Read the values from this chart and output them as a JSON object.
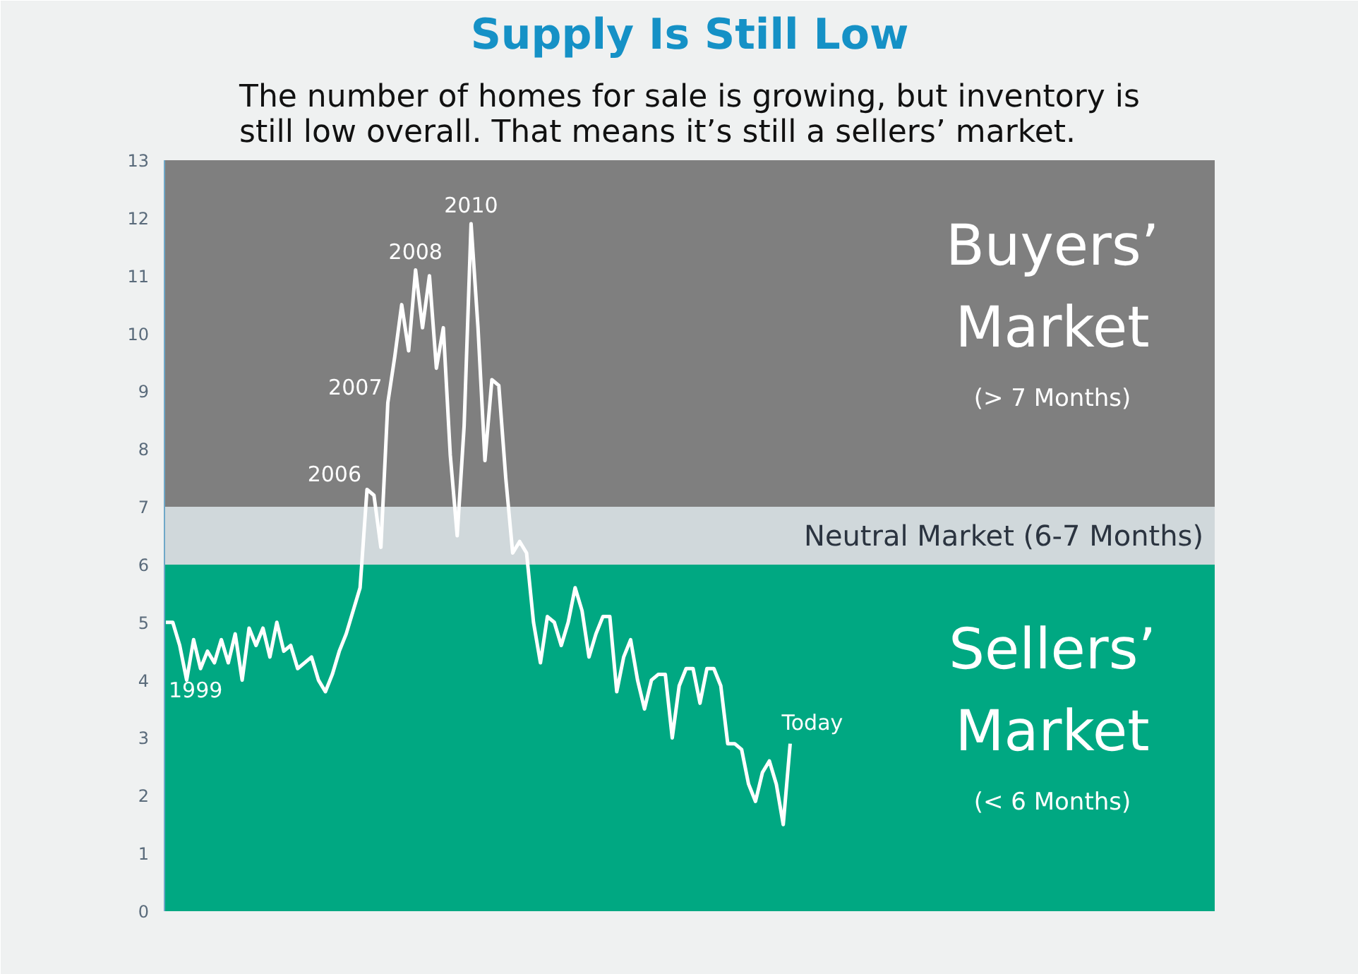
{
  "chart_data": {
    "type": "line",
    "title": "Supply Is Still Low",
    "subtitle": "The number of homes for sale is growing, but inventory is\nstill low overall. That means it’s still a sellers’ market.",
    "categories": [
      null,
      null,
      null,
      null,
      null,
      null,
      null,
      null,
      null,
      null,
      null,
      null,
      null,
      null,
      null,
      null,
      null,
      null,
      null,
      null,
      null,
      null,
      null,
      null,
      null,
      null,
      null,
      null,
      null,
      null,
      null,
      null,
      null,
      null,
      null,
      null,
      null,
      null,
      null,
      null,
      null,
      null,
      null,
      null,
      null,
      null,
      null,
      null,
      null,
      null,
      null,
      null,
      null,
      null,
      null,
      null,
      null,
      null,
      null,
      null,
      null,
      null,
      null,
      null,
      null,
      null,
      null,
      null,
      null,
      null,
      null,
      null,
      null,
      null,
      null,
      null,
      null,
      null,
      null,
      null,
      null,
      null,
      null,
      null,
      null,
      null,
      null,
      null,
      null,
      null,
      null
    ],
    "series": [
      {
        "color": "#ffffff",
        "values": [
          5.0,
          5.0,
          4.6,
          4.0,
          4.7,
          4.2,
          4.5,
          4.3,
          4.7,
          4.3,
          4.8,
          4.0,
          4.9,
          4.6,
          4.9,
          4.4,
          5.0,
          4.5,
          4.6,
          4.2,
          4.3,
          4.4,
          4.0,
          3.8,
          4.1,
          4.5,
          4.8,
          5.2,
          5.6,
          7.3,
          7.2,
          6.3,
          8.8,
          9.6,
          10.5,
          9.7,
          11.1,
          10.1,
          11.0,
          9.4,
          10.1,
          7.9,
          6.5,
          8.4,
          11.9,
          10.1,
          7.8,
          9.2,
          9.1,
          7.5,
          6.2,
          6.4,
          6.2,
          5.0,
          4.3,
          5.1,
          5.0,
          4.6,
          5.0,
          5.6,
          5.2,
          4.4,
          4.8,
          5.1,
          5.1,
          3.8,
          4.4,
          4.7,
          4.0,
          3.5,
          4.0,
          4.1,
          4.1,
          3.0,
          3.9,
          4.2,
          4.2,
          3.6,
          4.2,
          4.2,
          3.9,
          2.9,
          2.9,
          2.8,
          2.2,
          1.9,
          2.4,
          2.6,
          2.2,
          1.5,
          2.9
        ]
      }
    ],
    "ylim": [
      0,
      13
    ],
    "yticks": [
      0,
      1,
      2,
      3,
      4,
      5,
      6,
      7,
      8,
      9,
      10,
      11,
      12,
      13
    ],
    "tick_labels": "y",
    "line_style": "solid",
    "bands": [
      {
        "axis": "y",
        "from": 7,
        "to": 13,
        "color": "#7f7f7f",
        "label": "Buyers’\nMarket\n(> 7 Months)"
      },
      {
        "axis": "y",
        "from": 6,
        "to": 7,
        "color": "#d0d8db",
        "label": "Neutral Market (6-7 Months)"
      },
      {
        "axis": "y",
        "from": 0,
        "to": 6,
        "color": "#00a882",
        "label": "Sellers’\nMarket\n(< 6 Months)"
      }
    ],
    "annotations": [
      "1999",
      "2006",
      "2007",
      {
        "text": "2008",
        "y": 11.1
      },
      {
        "text": "2010",
        "y": 11.9
      },
      "Today"
    ]
  }
}
